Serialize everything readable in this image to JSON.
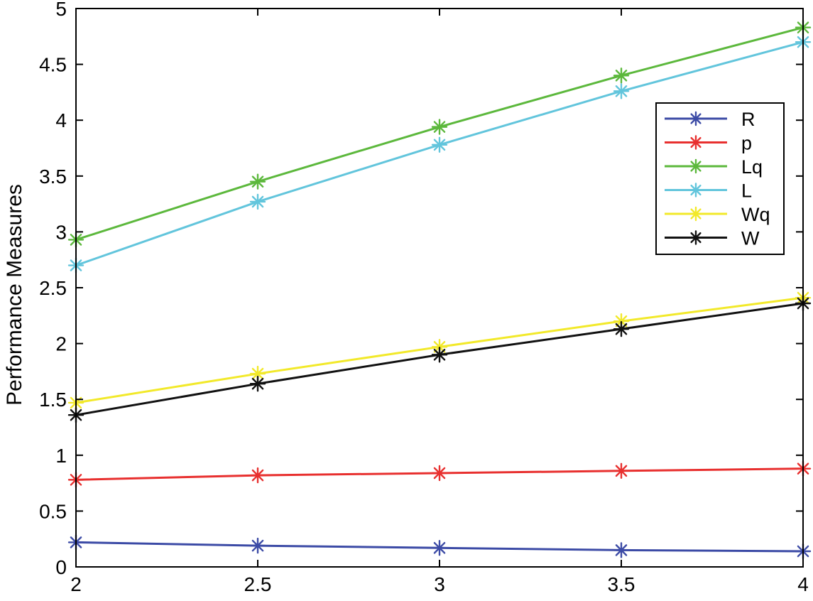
{
  "chart_data": {
    "type": "line",
    "title": "",
    "xlabel": "",
    "ylabel": "Performance Measures",
    "xlim": [
      2,
      4
    ],
    "ylim": [
      0,
      5
    ],
    "x_ticks": [
      "2",
      "2.5",
      "3",
      "3.5",
      "4"
    ],
    "y_ticks": [
      "0",
      "0.5",
      "1",
      "1.5",
      "2",
      "2.5",
      "3",
      "3.5",
      "4",
      "4.5",
      "5"
    ],
    "grid": false,
    "legend_position": "top-right",
    "x": [
      2,
      2.5,
      3,
      3.5,
      4
    ],
    "series": [
      {
        "name": "R",
        "color": "#3c4ba6",
        "values": [
          0.22,
          0.19,
          0.17,
          0.15,
          0.14
        ]
      },
      {
        "name": "p",
        "color": "#e8302f",
        "values": [
          0.78,
          0.82,
          0.84,
          0.86,
          0.88
        ]
      },
      {
        "name": "Lq",
        "color": "#5cb83c",
        "values": [
          2.93,
          3.45,
          3.94,
          4.4,
          4.83
        ]
      },
      {
        "name": "L",
        "color": "#62c5dc",
        "values": [
          2.7,
          3.27,
          3.78,
          4.26,
          4.7
        ]
      },
      {
        "name": "Wq",
        "color": "#f2e92a",
        "values": [
          1.47,
          1.73,
          1.97,
          2.2,
          2.41
        ]
      },
      {
        "name": "W",
        "color": "#111111",
        "values": [
          1.36,
          1.64,
          1.9,
          2.13,
          2.36
        ]
      }
    ]
  }
}
